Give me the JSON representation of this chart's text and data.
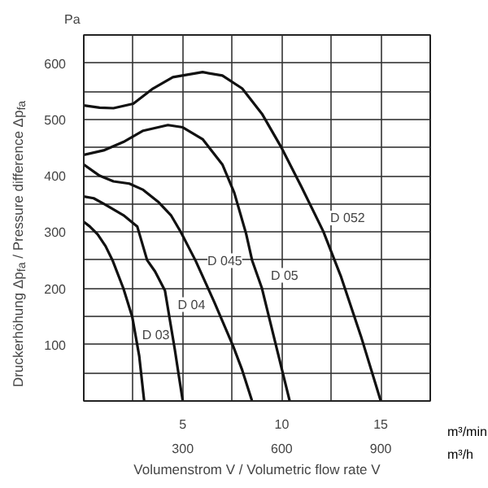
{
  "chart_data": {
    "type": "line",
    "xlabel": "Volumenstrom V / Volumetric flow rate V",
    "ylabel": "Druckerhöhung Δp$_{fa}$ / Pressure difference Δp$_{fa}$",
    "annotations": [
      "Pa",
      "m³/min",
      "m³/h",
      {
        "text": "D 052",
        "x": 12.2,
        "y": 325
      },
      {
        "text": "D 05",
        "x": 9.2,
        "y": 223
      },
      {
        "text": "D 045",
        "x": 6.0,
        "y": 249
      },
      {
        "text": "D 04",
        "x": 4.5,
        "y": 171
      },
      {
        "text": "D 03",
        "x": 2.7,
        "y": 117
      }
    ],
    "series": [
      {
        "color": "#111111",
        "x": [
          0,
          0.8,
          1.5,
          2.5,
          3.5,
          4.5,
          6.0,
          7.0,
          8.0,
          9.0,
          10.0,
          11.0,
          12.1,
          13.0,
          14.0,
          15.0
        ],
        "values": [
          525,
          521,
          520,
          528,
          555,
          575,
          584,
          578,
          555,
          510,
          449,
          380,
          301,
          220,
          115,
          0
        ]
      },
      {
        "color": "#111111",
        "x": [
          0,
          1,
          2,
          3,
          4.25,
          5,
          6,
          7,
          7.6,
          8.2,
          8.5,
          9.0,
          9.7,
          10.4
        ],
        "values": [
          437,
          445,
          460,
          480,
          490,
          486,
          465,
          420,
          370,
          297,
          250,
          200,
          100,
          0
        ]
      },
      {
        "color": "#111111",
        "x": [
          0,
          0.8,
          1.5,
          2.3,
          3,
          3.75,
          4.4,
          4.9,
          5.65,
          6.6,
          7.55,
          8.0,
          8.5
        ],
        "values": [
          420,
          400,
          390,
          386,
          375,
          354,
          330,
          300,
          249,
          175,
          97,
          55,
          0
        ]
      },
      {
        "color": "#111111",
        "x": [
          0,
          0.5,
          1.07,
          2.0,
          2.7,
          3.2,
          3.6,
          4.1,
          4.6,
          4.8,
          5.0
        ],
        "values": [
          363,
          360,
          349,
          330,
          310,
          250,
          230,
          196,
          91,
          45,
          0
        ]
      },
      {
        "color": "#111111",
        "x": [
          0,
          0.3,
          0.7,
          1.1,
          1.45,
          2.0,
          2.45,
          2.8,
          3.05
        ],
        "values": [
          318,
          310,
          296,
          275,
          250,
          200,
          149,
          80,
          0
        ]
      }
    ],
    "xlim": [
      0,
      17.5
    ],
    "ylim": [
      0,
      650
    ],
    "xticks": [
      {
        "value": 2.5,
        "label": null
      },
      5,
      {
        "value": 7.5,
        "label": null
      },
      10,
      {
        "value": 12.5,
        "label": null
      },
      15
    ],
    "x2lim": [
      0,
      1050
    ],
    "x2ticks": [
      300,
      600,
      900
    ],
    "yticks": [
      {
        "value": 50,
        "label": null
      },
      100,
      {
        "value": 150,
        "label": null
      },
      200,
      {
        "value": 250,
        "label": null
      },
      300,
      {
        "value": 350,
        "label": null
      },
      400,
      {
        "value": 450,
        "label": null
      },
      500,
      {
        "value": 550,
        "label": null
      },
      600
    ],
    "grid": true,
    "line_style": "solid"
  }
}
